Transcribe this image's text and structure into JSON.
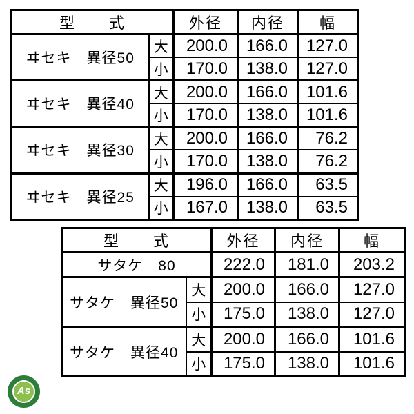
{
  "chart_data": [
    {
      "type": "table",
      "header": {
        "model": "型　　式",
        "outer": "外径",
        "inner": "内径",
        "width": "幅"
      },
      "size_large": "大",
      "size_small": "小",
      "groups": [
        {
          "model": "ヰセキ　異径50",
          "large": {
            "outer": "200.0",
            "inner": "166.0",
            "width": "127.0"
          },
          "small": {
            "outer": "170.0",
            "inner": "138.0",
            "width": "127.0"
          }
        },
        {
          "model": "ヰセキ　異径40",
          "large": {
            "outer": "200.0",
            "inner": "166.0",
            "width": "101.6"
          },
          "small": {
            "outer": "170.0",
            "inner": "138.0",
            "width": "101.6"
          }
        },
        {
          "model": "ヰセキ　異径30",
          "large": {
            "outer": "200.0",
            "inner": "166.0",
            "width": "76.2"
          },
          "small": {
            "outer": "170.0",
            "inner": "138.0",
            "width": "76.2"
          }
        },
        {
          "model": "ヰセキ　異径25",
          "large": {
            "outer": "196.0",
            "inner": "166.0",
            "width": "63.5"
          },
          "small": {
            "outer": "167.0",
            "inner": "138.0",
            "width": "63.5"
          }
        }
      ]
    },
    {
      "type": "table",
      "header": {
        "model": "型　　式",
        "outer": "外径",
        "inner": "内径",
        "width": "幅"
      },
      "size_large": "大",
      "size_small": "小",
      "single": {
        "model": "サタケ　80",
        "outer": "222.0",
        "inner": "181.0",
        "width": "203.2"
      },
      "groups": [
        {
          "model": "サタケ　異径50",
          "large": {
            "outer": "200.0",
            "inner": "166.0",
            "width": "127.0"
          },
          "small": {
            "outer": "175.0",
            "inner": "138.0",
            "width": "127.0"
          }
        },
        {
          "model": "サタケ　異径40",
          "large": {
            "outer": "200.0",
            "inner": "166.0",
            "width": "101.6"
          },
          "small": {
            "outer": "175.0",
            "inner": "138.0",
            "width": "101.6"
          }
        }
      ]
    }
  ],
  "logo": {
    "text": "As"
  },
  "colors": {
    "border": "#000000",
    "background": "#ffffff",
    "logo_outer": "#2e7d3b",
    "logo_inner": "#8dbf4f",
    "logo_text": "#ffffff"
  }
}
